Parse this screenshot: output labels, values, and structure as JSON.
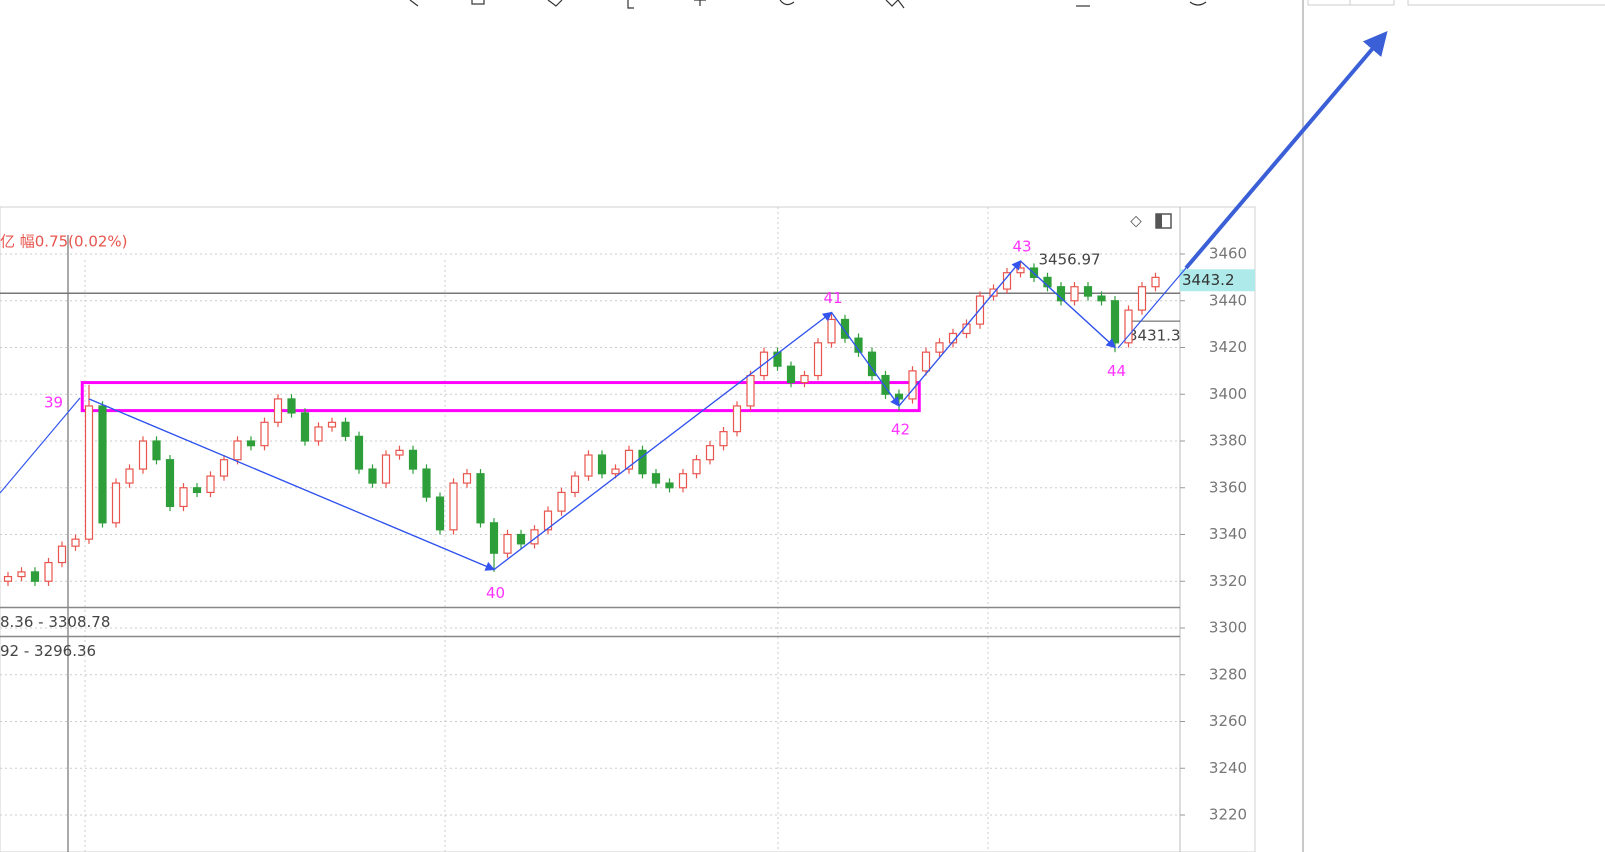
{
  "chart_data": {
    "type": "candlestick",
    "header_text": "亿 幅0.75(0.02%)",
    "open": [
      3320,
      3322,
      3324,
      3320,
      3328,
      3335,
      3338,
      3395,
      3345,
      3362,
      3368,
      3380,
      3372,
      3352,
      3360,
      3358,
      3365,
      3372,
      3380,
      3378,
      3388,
      3398,
      3392,
      3380,
      3386,
      3388,
      3382,
      3368,
      3362,
      3374,
      3376,
      3368,
      3356,
      3342,
      3362,
      3366,
      3345,
      3332,
      3340,
      3336,
      3342,
      3350,
      3358,
      3365,
      3374,
      3366,
      3368,
      3376,
      3366,
      3362,
      3360,
      3366,
      3372,
      3378,
      3384,
      3395,
      3408,
      3418,
      3412,
      3405,
      3408,
      3422,
      3432,
      3424,
      3418,
      3408,
      3400,
      3398,
      3410,
      3418,
      3422,
      3426,
      3430,
      3442,
      3445,
      3452,
      3454,
      3450,
      3446,
      3440,
      3446,
      3442,
      3440,
      3422,
      3436,
      3446
    ],
    "high": [
      3324,
      3326,
      3326,
      3330,
      3337,
      3340,
      3404,
      3397,
      3364,
      3370,
      3382,
      3382,
      3374,
      3362,
      3362,
      3367,
      3374,
      3382,
      3382,
      3390,
      3400,
      3400,
      3394,
      3388,
      3390,
      3390,
      3384,
      3370,
      3376,
      3378,
      3378,
      3370,
      3358,
      3364,
      3368,
      3368,
      3347,
      3342,
      3342,
      3344,
      3352,
      3360,
      3367,
      3376,
      3376,
      3370,
      3378,
      3378,
      3368,
      3364,
      3368,
      3374,
      3380,
      3386,
      3397,
      3410,
      3420,
      3420,
      3414,
      3410,
      3424,
      3435,
      3434,
      3426,
      3420,
      3410,
      3402,
      3412,
      3420,
      3424,
      3428,
      3432,
      3444,
      3447,
      3454,
      3456.97,
      3456,
      3452,
      3448,
      3448,
      3448,
      3444,
      3442,
      3438,
      3448,
      3452
    ],
    "low": [
      3318,
      3320,
      3318,
      3318,
      3326,
      3333,
      3336,
      3343,
      3343,
      3360,
      3366,
      3370,
      3350,
      3350,
      3356,
      3356,
      3363,
      3370,
      3376,
      3376,
      3386,
      3390,
      3378,
      3378,
      3384,
      3380,
      3366,
      3360,
      3360,
      3372,
      3366,
      3354,
      3340,
      3340,
      3360,
      3343,
      3324,
      3330,
      3334,
      3334,
      3340,
      3348,
      3356,
      3363,
      3364,
      3364,
      3366,
      3364,
      3360,
      3358,
      3358,
      3364,
      3370,
      3376,
      3382,
      3393,
      3406,
      3410,
      3403,
      3403,
      3406,
      3420,
      3422,
      3416,
      3406,
      3398,
      3393,
      3396,
      3408,
      3416,
      3420,
      3424,
      3428,
      3440,
      3443,
      3450,
      3448,
      3444,
      3438,
      3438,
      3440,
      3438,
      3418,
      3420,
      3434,
      3444
    ],
    "close": [
      3322,
      3324,
      3320,
      3328,
      3335,
      3338,
      3395,
      3345,
      3362,
      3368,
      3380,
      3372,
      3352,
      3360,
      3358,
      3365,
      3372,
      3380,
      3378,
      3388,
      3398,
      3392,
      3380,
      3386,
      3388,
      3382,
      3368,
      3362,
      3374,
      3376,
      3368,
      3356,
      3342,
      3362,
      3366,
      3345,
      3332,
      3340,
      3336,
      3342,
      3350,
      3358,
      3365,
      3374,
      3366,
      3368,
      3376,
      3366,
      3362,
      3360,
      3366,
      3372,
      3378,
      3384,
      3395,
      3408,
      3418,
      3412,
      3405,
      3408,
      3422,
      3432,
      3424,
      3418,
      3408,
      3400,
      3398,
      3410,
      3418,
      3422,
      3426,
      3430,
      3442,
      3445,
      3452,
      3454,
      3450,
      3446,
      3440,
      3446,
      3442,
      3440,
      3422,
      3436,
      3446,
      3450
    ],
    "up_color": "#e8554e",
    "down_color": "#2e9e3a",
    "ylim": [
      3204,
      3480
    ],
    "yticks": [
      3220,
      3240,
      3260,
      3280,
      3300,
      3320,
      3340,
      3360,
      3380,
      3400,
      3420,
      3440,
      3460
    ],
    "grid": true,
    "last_price": 3443.2,
    "peak_index": 75,
    "level_3431": 3431.3,
    "levels": [
      3308.78,
      3296.36
    ],
    "range_labels": [
      "8.36 - 3308.78",
      "92 - 3296.36"
    ],
    "zigzag": {
      "color": "#3355ee",
      "labels": [
        "39",
        "40",
        "41",
        "42",
        "43",
        "44"
      ],
      "index": [
        6,
        36,
        61,
        66,
        75,
        82
      ],
      "values": [
        3398,
        3325,
        3435,
        3395,
        3457,
        3420
      ],
      "label_color": "#ff33ff"
    },
    "box": {
      "color": "#ff00ff",
      "index": [
        6,
        67
      ],
      "ylim": [
        3393,
        3405
      ]
    }
  }
}
